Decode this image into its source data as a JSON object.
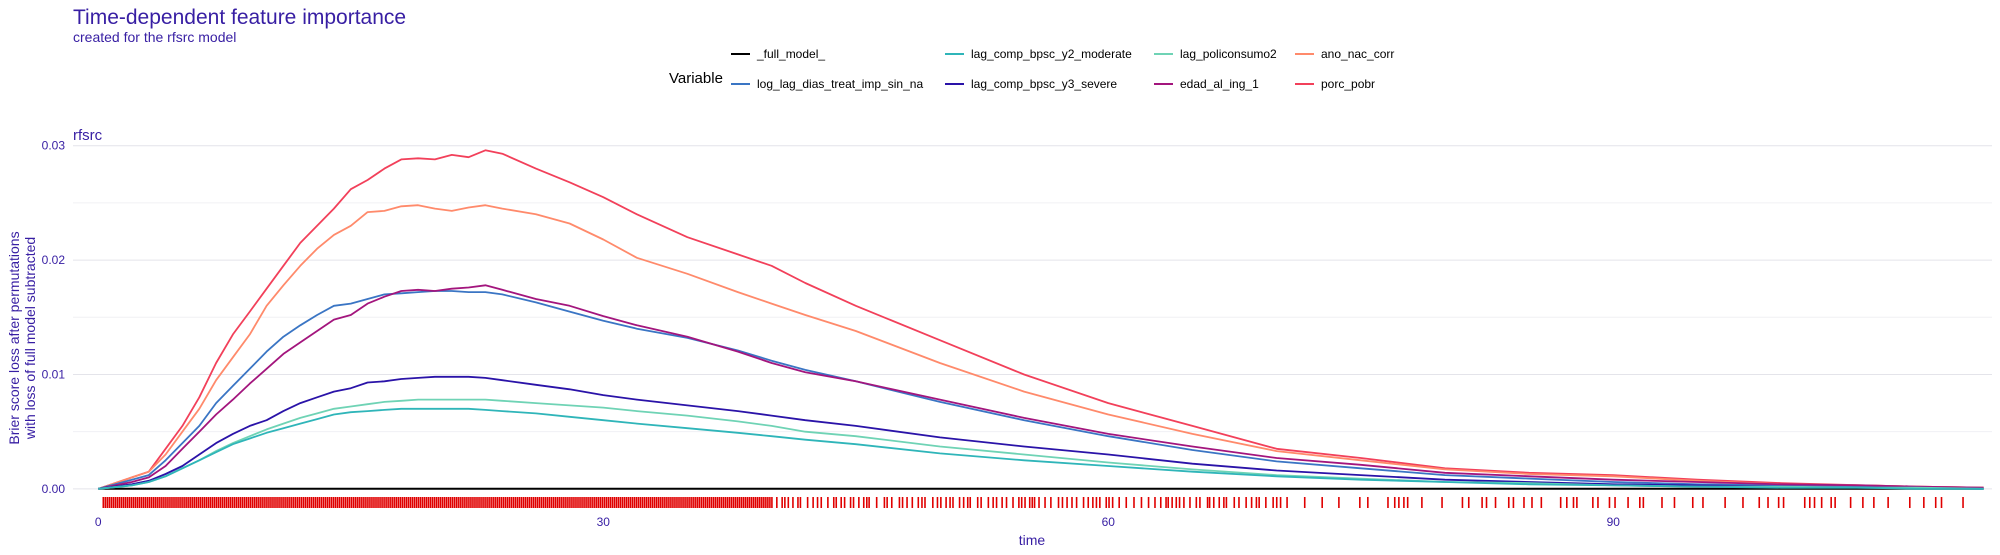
{
  "title": "Time-dependent feature importance",
  "subtitle": "created for the rfsrc model",
  "facet_label": "rfsrc",
  "legend": {
    "title": "Variable",
    "placement": "top",
    "items": [
      {
        "name": "_full_model_",
        "color": "#000000"
      },
      {
        "name": "log_lag_dias_treat_imp_sin_na",
        "color": "#3a75c4"
      },
      {
        "name": "lag_comp_bpsc_y2_moderate",
        "color": "#2fb5b9"
      },
      {
        "name": "lag_comp_bpsc_y3_severe",
        "color": "#2a13a8"
      },
      {
        "name": "lag_policonsumo2",
        "color": "#6fd3b5"
      },
      {
        "name": "edad_al_ing_1",
        "color": "#a3157d"
      },
      {
        "name": "ano_nac_corr",
        "color": "#ff8a6b"
      },
      {
        "name": "porc_pobr",
        "color": "#f2405a"
      }
    ]
  },
  "chart_data": {
    "type": "line",
    "title": "Time-dependent feature importance",
    "subtitle": "created for the rfsrc model",
    "xlabel": "time",
    "ylabel": "Brier score loss after permutations\nwith loss of full model subtracted",
    "xlim": [
      -1.5,
      112.5
    ],
    "ylim": [
      -0.0015,
      0.0305
    ],
    "xticks": [
      0,
      30,
      60,
      90
    ],
    "yticks": [
      0.0,
      0.01,
      0.02,
      0.03
    ],
    "ytick_labels": [
      "0.00",
      "0.01",
      "0.02",
      "0.03"
    ],
    "grid": true,
    "rug": "observed times along the x axis",
    "series": [
      {
        "name": "_full_model_",
        "color": "#000000",
        "x": [
          0,
          112
        ],
        "y": [
          0,
          0
        ]
      },
      {
        "name": "porc_pobr",
        "color": "#f2405a",
        "x": [
          0,
          2,
          3,
          4,
          5,
          6,
          7,
          8,
          9,
          10,
          11,
          12,
          13,
          14,
          15,
          16,
          17,
          18,
          19,
          20,
          21,
          22,
          23,
          24,
          26,
          28,
          30,
          32,
          35,
          38,
          40,
          42,
          45,
          50,
          55,
          60,
          65,
          70,
          75,
          80,
          85,
          90,
          95,
          100,
          105,
          108,
          112
        ],
        "y": [
          0,
          0.001,
          0.0015,
          0.0035,
          0.0055,
          0.008,
          0.011,
          0.0135,
          0.0155,
          0.0175,
          0.0195,
          0.0215,
          0.023,
          0.0245,
          0.0262,
          0.027,
          0.028,
          0.0288,
          0.0289,
          0.0288,
          0.0292,
          0.029,
          0.0296,
          0.0293,
          0.028,
          0.0268,
          0.0255,
          0.024,
          0.022,
          0.0205,
          0.0195,
          0.018,
          0.016,
          0.013,
          0.01,
          0.0075,
          0.0055,
          0.0035,
          0.0027,
          0.0018,
          0.0014,
          0.0012,
          0.0008,
          0.0005,
          0.0003,
          0.0002,
          0.0001
        ]
      },
      {
        "name": "ano_nac_corr",
        "color": "#ff8a6b",
        "x": [
          0,
          2,
          3,
          4,
          5,
          6,
          7,
          8,
          9,
          10,
          11,
          12,
          13,
          14,
          15,
          16,
          17,
          18,
          19,
          20,
          21,
          22,
          23,
          24,
          26,
          28,
          30,
          32,
          35,
          38,
          40,
          42,
          45,
          50,
          55,
          60,
          65,
          70,
          75,
          80,
          85,
          90,
          95,
          100,
          105,
          108,
          112
        ],
        "y": [
          0,
          0.001,
          0.0015,
          0.003,
          0.005,
          0.007,
          0.0095,
          0.0115,
          0.0135,
          0.016,
          0.0178,
          0.0195,
          0.021,
          0.0222,
          0.023,
          0.0242,
          0.0243,
          0.0247,
          0.0248,
          0.0245,
          0.0243,
          0.0246,
          0.0248,
          0.0245,
          0.024,
          0.0232,
          0.0218,
          0.0202,
          0.0188,
          0.0172,
          0.0162,
          0.0152,
          0.0138,
          0.011,
          0.0085,
          0.0065,
          0.0048,
          0.0033,
          0.0025,
          0.0017,
          0.0013,
          0.0011,
          0.0007,
          0.0004,
          0.0003,
          0.0002,
          0.0001
        ]
      },
      {
        "name": "log_lag_dias_treat_imp_sin_na",
        "color": "#3a75c4",
        "x": [
          0,
          2,
          3,
          4,
          5,
          6,
          7,
          8,
          9,
          10,
          11,
          12,
          13,
          14,
          15,
          16,
          17,
          18,
          19,
          20,
          21,
          22,
          23,
          24,
          26,
          28,
          30,
          32,
          35,
          38,
          40,
          42,
          45,
          50,
          55,
          60,
          65,
          70,
          75,
          80,
          85,
          90,
          95,
          100,
          105,
          108,
          112
        ],
        "y": [
          0,
          0.0008,
          0.0012,
          0.0025,
          0.004,
          0.0055,
          0.0075,
          0.009,
          0.0105,
          0.012,
          0.0133,
          0.0143,
          0.0152,
          0.016,
          0.0162,
          0.0166,
          0.017,
          0.0171,
          0.0172,
          0.0173,
          0.0173,
          0.0172,
          0.0172,
          0.017,
          0.0163,
          0.0155,
          0.0147,
          0.014,
          0.0132,
          0.0121,
          0.0112,
          0.0104,
          0.0094,
          0.0076,
          0.006,
          0.0046,
          0.0034,
          0.0024,
          0.0018,
          0.0012,
          0.0009,
          0.0006,
          0.0004,
          0.0003,
          0.0002,
          0.0001,
          0
        ]
      },
      {
        "name": "edad_al_ing_1",
        "color": "#a3157d",
        "x": [
          0,
          2,
          3,
          4,
          5,
          6,
          7,
          8,
          9,
          10,
          11,
          12,
          13,
          14,
          15,
          16,
          17,
          18,
          19,
          20,
          21,
          22,
          23,
          24,
          26,
          28,
          30,
          32,
          35,
          38,
          40,
          42,
          45,
          50,
          55,
          60,
          65,
          70,
          75,
          80,
          85,
          90,
          95,
          100,
          105,
          108,
          112
        ],
        "y": [
          0,
          0.0006,
          0.001,
          0.002,
          0.0035,
          0.005,
          0.0065,
          0.0078,
          0.0092,
          0.0105,
          0.0118,
          0.0128,
          0.0138,
          0.0148,
          0.0152,
          0.0162,
          0.0168,
          0.0173,
          0.0174,
          0.0173,
          0.0175,
          0.0176,
          0.0178,
          0.0174,
          0.0166,
          0.016,
          0.0151,
          0.0143,
          0.0133,
          0.012,
          0.011,
          0.0102,
          0.0094,
          0.0078,
          0.0062,
          0.0048,
          0.0037,
          0.0027,
          0.0021,
          0.0014,
          0.0011,
          0.0008,
          0.0006,
          0.0004,
          0.0003,
          0.0002,
          0.0001
        ]
      },
      {
        "name": "lag_comp_bpsc_y3_severe",
        "color": "#2a13a8",
        "x": [
          0,
          2,
          3,
          4,
          5,
          6,
          7,
          8,
          9,
          10,
          11,
          12,
          13,
          14,
          15,
          16,
          17,
          18,
          19,
          20,
          21,
          22,
          23,
          24,
          26,
          28,
          30,
          32,
          35,
          38,
          40,
          42,
          45,
          50,
          55,
          60,
          65,
          70,
          75,
          80,
          85,
          90,
          95,
          100,
          105,
          108,
          112
        ],
        "y": [
          0,
          0.0004,
          0.0007,
          0.0013,
          0.002,
          0.003,
          0.004,
          0.0048,
          0.0055,
          0.006,
          0.0068,
          0.0075,
          0.008,
          0.0085,
          0.0088,
          0.0093,
          0.0094,
          0.0096,
          0.0097,
          0.0098,
          0.0098,
          0.0098,
          0.0097,
          0.0095,
          0.0091,
          0.0087,
          0.0082,
          0.0078,
          0.0073,
          0.0068,
          0.0064,
          0.006,
          0.0055,
          0.0045,
          0.0037,
          0.003,
          0.0022,
          0.0016,
          0.0012,
          0.0008,
          0.0006,
          0.0004,
          0.0003,
          0.0002,
          0.0001,
          0.0001,
          0
        ]
      },
      {
        "name": "lag_policonsumo2",
        "color": "#6fd3b5",
        "x": [
          0,
          2,
          3,
          4,
          5,
          6,
          7,
          8,
          9,
          10,
          11,
          12,
          13,
          14,
          15,
          16,
          17,
          18,
          19,
          20,
          21,
          22,
          23,
          24,
          26,
          28,
          30,
          32,
          35,
          38,
          40,
          42,
          45,
          50,
          55,
          60,
          65,
          70,
          75,
          80,
          85,
          90,
          95,
          100,
          105,
          108,
          112
        ],
        "y": [
          0,
          0.0003,
          0.0006,
          0.0011,
          0.0018,
          0.0025,
          0.0033,
          0.004,
          0.0046,
          0.0052,
          0.0057,
          0.0062,
          0.0066,
          0.007,
          0.0072,
          0.0074,
          0.0076,
          0.0077,
          0.0078,
          0.0078,
          0.0078,
          0.0078,
          0.0078,
          0.0077,
          0.0075,
          0.0073,
          0.0071,
          0.0068,
          0.0064,
          0.0059,
          0.0055,
          0.005,
          0.0046,
          0.0037,
          0.003,
          0.0023,
          0.0017,
          0.0012,
          0.0009,
          0.0006,
          0.0005,
          0.0003,
          0.0002,
          0.0002,
          0.0001,
          0.0001,
          0
        ]
      },
      {
        "name": "lag_comp_bpsc_y2_moderate",
        "color": "#2fb5b9",
        "x": [
          0,
          2,
          3,
          4,
          5,
          6,
          7,
          8,
          9,
          10,
          11,
          12,
          13,
          14,
          15,
          16,
          17,
          18,
          19,
          20,
          21,
          22,
          23,
          24,
          26,
          28,
          30,
          32,
          35,
          38,
          40,
          42,
          45,
          50,
          55,
          60,
          65,
          70,
          75,
          80,
          85,
          90,
          95,
          100,
          105,
          108,
          112
        ],
        "y": [
          0,
          0.0003,
          0.0006,
          0.0011,
          0.0018,
          0.0025,
          0.0032,
          0.0039,
          0.0044,
          0.0049,
          0.0053,
          0.0057,
          0.0061,
          0.0065,
          0.0067,
          0.0068,
          0.0069,
          0.007,
          0.007,
          0.007,
          0.007,
          0.007,
          0.0069,
          0.0068,
          0.0066,
          0.0063,
          0.006,
          0.0057,
          0.0053,
          0.0049,
          0.0046,
          0.0043,
          0.0039,
          0.0031,
          0.0025,
          0.002,
          0.0015,
          0.0011,
          0.0008,
          0.0006,
          0.0004,
          0.0003,
          0.0002,
          0.0001,
          0.0001,
          0,
          0
        ]
      }
    ]
  }
}
